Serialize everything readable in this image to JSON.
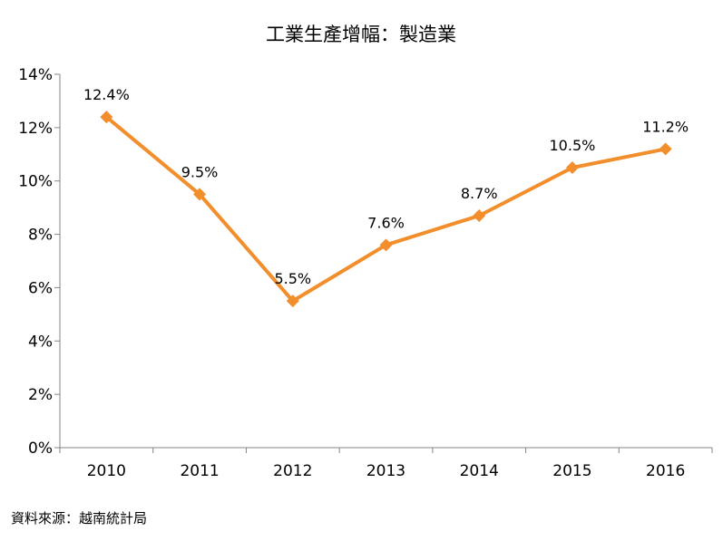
{
  "chart_data": {
    "type": "line",
    "title": "工業生產增幅：製造業",
    "categories": [
      "2010",
      "2011",
      "2012",
      "2013",
      "2014",
      "2015",
      "2016"
    ],
    "series": [
      {
        "values": [
          12.4,
          9.5,
          5.5,
          7.6,
          8.7,
          10.5,
          11.2
        ],
        "labels": [
          "12.4%",
          "9.5%",
          "5.5%",
          "7.6%",
          "8.7%",
          "10.5%",
          "11.2%"
        ],
        "color": "#F28E2B"
      }
    ],
    "ylim": [
      0,
      14
    ],
    "yticks": [
      "0%",
      "2%",
      "4%",
      "6%",
      "8%",
      "10%",
      "12%",
      "14%"
    ],
    "ytick_values": [
      0,
      2,
      4,
      6,
      8,
      10,
      12,
      14
    ],
    "xlabel": "",
    "ylabel": "",
    "grid": false,
    "legend": "none",
    "marker": "diamond"
  },
  "source": "資料來源：越南統計局"
}
